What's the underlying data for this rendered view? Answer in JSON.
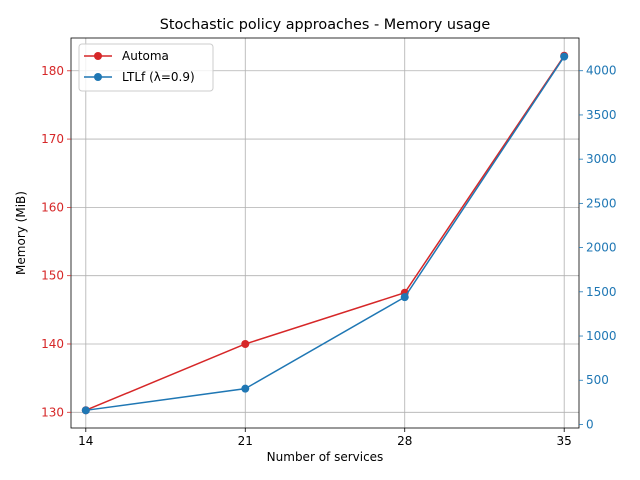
{
  "chart_data": {
    "type": "line",
    "title": "Stochastic policy approaches - Memory usage",
    "xlabel": "Number of services",
    "ylabel": "Memory (MiB)",
    "ylabel_right": "",
    "x": [
      14,
      21,
      28,
      35
    ],
    "x_ticks": [
      "14",
      "21",
      "28",
      "35"
    ],
    "xlim": [
      13.35,
      35.65
    ],
    "ylim_left": [
      127.7,
      184.8
    ],
    "ylim_right": [
      -40,
      4370
    ],
    "y_ticks_left": [
      130,
      140,
      150,
      160,
      170,
      180
    ],
    "y_ticks_right": [
      0,
      500,
      1000,
      1500,
      2000,
      2500,
      3000,
      3500,
      4000
    ],
    "grid": true,
    "legend_position": "upper-left",
    "series": [
      {
        "name": "Automa",
        "axis": "left",
        "color": "#d62728",
        "values": [
          130.3,
          140.0,
          147.5,
          182.2
        ]
      },
      {
        "name": "LTLf (λ=0.9)",
        "axis": "right",
        "color": "#1f77b4",
        "values": [
          160,
          405,
          1440,
          4160
        ]
      }
    ]
  },
  "colors": {
    "left_axis": "#d62728",
    "right_axis": "#1f77b4",
    "grid": "#b0b0b0"
  }
}
